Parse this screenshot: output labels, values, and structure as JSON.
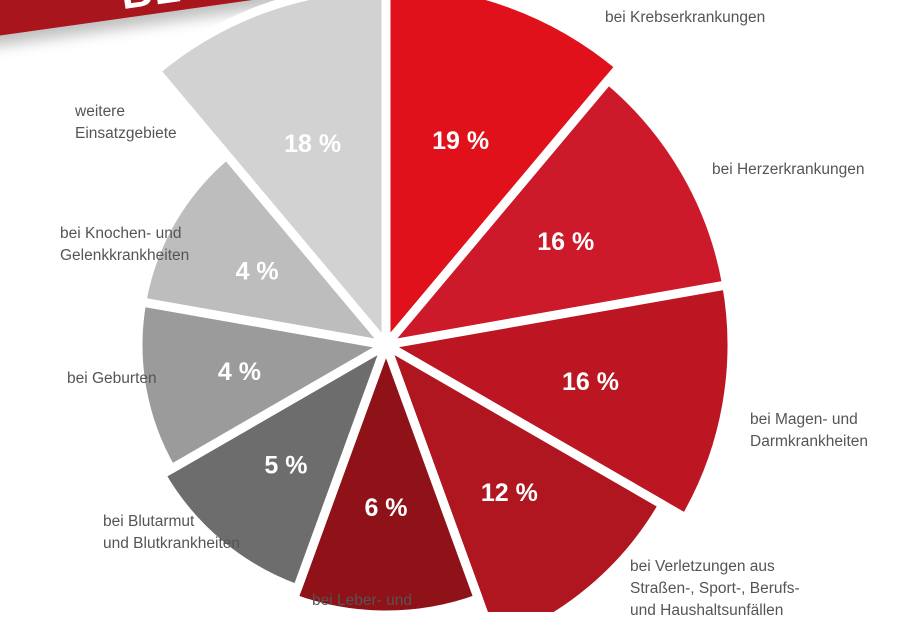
{
  "banner": {
    "title": "BLUTSPENDE"
  },
  "chart_data": {
    "type": "pie",
    "title": "BLUTSPENDE",
    "slices": [
      {
        "label": [
          "bei Krebserkrankungen"
        ],
        "value": 19,
        "value_label": "19 %",
        "color": "#e0111b"
      },
      {
        "label": [
          "bei Herzerkrankungen"
        ],
        "value": 16,
        "value_label": "16 %",
        "color": "#cc1a2a"
      },
      {
        "label": [
          "bei Magen- und",
          "Darmkrankheiten"
        ],
        "value": 16,
        "value_label": "16 %",
        "color": "#bb1622"
      },
      {
        "label": [
          "bei Verletzungen aus",
          "Straßen-, Sport-, Berufs-",
          "und Haushaltsunfällen"
        ],
        "value": 12,
        "value_label": "12 %",
        "color": "#b0161f"
      },
      {
        "label": [
          "bei Leber- und"
        ],
        "value": 6,
        "value_label": "6 %",
        "color": "#8e1217"
      },
      {
        "label": [
          "bei Blutarmut",
          "und Blutkrankheiten"
        ],
        "value": 5,
        "value_label": "5 %",
        "color": "#6e6d6d"
      },
      {
        "label": [
          "bei Geburten"
        ],
        "value": 4,
        "value_label": "4 %",
        "color": "#9c9b9b"
      },
      {
        "label": [
          "bei Knochen- und",
          "Gelenkkrankheiten"
        ],
        "value": 4,
        "value_label": "4 %",
        "color": "#bebdbd"
      },
      {
        "label": [
          "weitere",
          "Einsatzgebiete"
        ],
        "value": 18,
        "value_label": "18 %",
        "color": "#d2d2d2"
      }
    ]
  }
}
